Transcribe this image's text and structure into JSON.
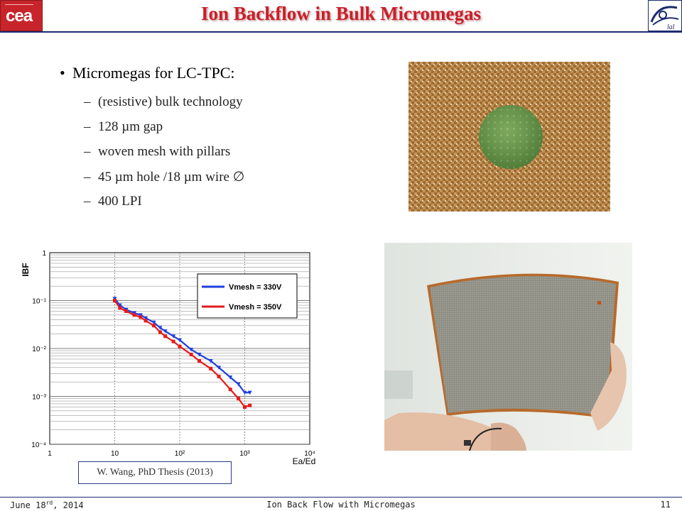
{
  "header": {
    "title": "Ion Backflow in Bulk Micromegas",
    "left_logo_text": "cea",
    "right_logo_text": "lal"
  },
  "bullets": {
    "main": "Micromegas for LC-TPC:",
    "subs": [
      "(resistive) bulk technology",
      "128 µm gap",
      "woven mesh with pillars",
      "45 µm hole /18 µm wire ∅",
      "400 LPI"
    ]
  },
  "caption": "W. Wang, PhD Thesis (2013)",
  "footer": {
    "date_main": "June 18",
    "date_sup": "rd",
    "date_year": ", 2014",
    "center": "Ion Back Flow with Micromegas",
    "page": "11"
  },
  "chart_data": {
    "type": "line",
    "ylabel": "IBF",
    "xlabel": "Ea/Ed",
    "xscale": "log",
    "yscale": "log",
    "xlim": [
      1,
      10000
    ],
    "ylim": [
      0.0001,
      1
    ],
    "x_ticks": [
      "1",
      "10",
      "10²",
      "10³",
      "10⁴"
    ],
    "y_ticks": [
      "10⁻⁴",
      "10⁻³",
      "10⁻²",
      "10⁻¹",
      "1"
    ],
    "grid": true,
    "legend_position": "top-right",
    "series": [
      {
        "name": "Vmesh = 330V",
        "color": "#1f3fe0",
        "marker": "triangle-down",
        "points": [
          [
            10,
            0.11
          ],
          [
            12,
            0.08
          ],
          [
            15,
            0.065
          ],
          [
            20,
            0.055
          ],
          [
            25,
            0.05
          ],
          [
            30,
            0.043
          ],
          [
            40,
            0.035
          ],
          [
            50,
            0.027
          ],
          [
            60,
            0.023
          ],
          [
            80,
            0.018
          ],
          [
            100,
            0.015
          ],
          [
            150,
            0.0095
          ],
          [
            200,
            0.0075
          ],
          [
            300,
            0.0055
          ],
          [
            400,
            0.004
          ],
          [
            600,
            0.0025
          ],
          [
            800,
            0.0018
          ],
          [
            1000,
            0.0012
          ],
          [
            1200,
            0.0012
          ]
        ]
      },
      {
        "name": "Vmesh = 350V",
        "color": "#e51b1b",
        "marker": "square",
        "points": [
          [
            10,
            0.1
          ],
          [
            12,
            0.07
          ],
          [
            15,
            0.06
          ],
          [
            20,
            0.05
          ],
          [
            25,
            0.045
          ],
          [
            30,
            0.038
          ],
          [
            40,
            0.03
          ],
          [
            50,
            0.022
          ],
          [
            60,
            0.018
          ],
          [
            80,
            0.014
          ],
          [
            100,
            0.011
          ],
          [
            150,
            0.0075
          ],
          [
            200,
            0.0055
          ],
          [
            300,
            0.0038
          ],
          [
            400,
            0.0026
          ],
          [
            600,
            0.0014
          ],
          [
            800,
            0.0009
          ],
          [
            1000,
            0.0006
          ],
          [
            1200,
            0.00065
          ]
        ]
      }
    ]
  }
}
